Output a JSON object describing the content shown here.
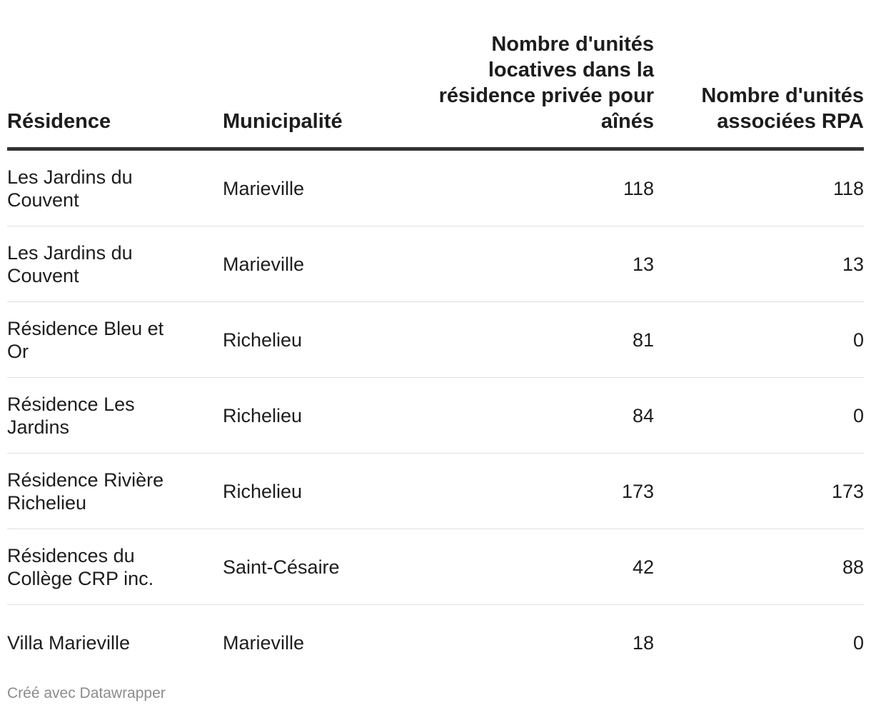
{
  "chart_data": {
    "type": "table",
    "columns": [
      "Résidence",
      "Municipalité",
      "Nombre d'unités locatives dans la résidence privée pour aînés",
      "Nombre d'unités associées RPA"
    ],
    "rows": [
      [
        "Les Jardins du Couvent",
        "Marieville",
        "118",
        "118"
      ],
      [
        "Les Jardins du Couvent",
        "Marieville",
        "13",
        "13"
      ],
      [
        "Résidence Bleu et Or",
        "Richelieu",
        "81",
        "0"
      ],
      [
        "Résidence Les Jardins",
        "Richelieu",
        "84",
        "0"
      ],
      [
        "Résidence Rivière Richelieu",
        "Richelieu",
        "173",
        "173"
      ],
      [
        "Résidences du Collège CRP inc.",
        "Saint-Césaire",
        "42",
        "88"
      ],
      [
        "Villa Marieville",
        "Marieville",
        "18",
        "0"
      ]
    ]
  },
  "footer": {
    "credit": "Créé avec Datawrapper"
  }
}
